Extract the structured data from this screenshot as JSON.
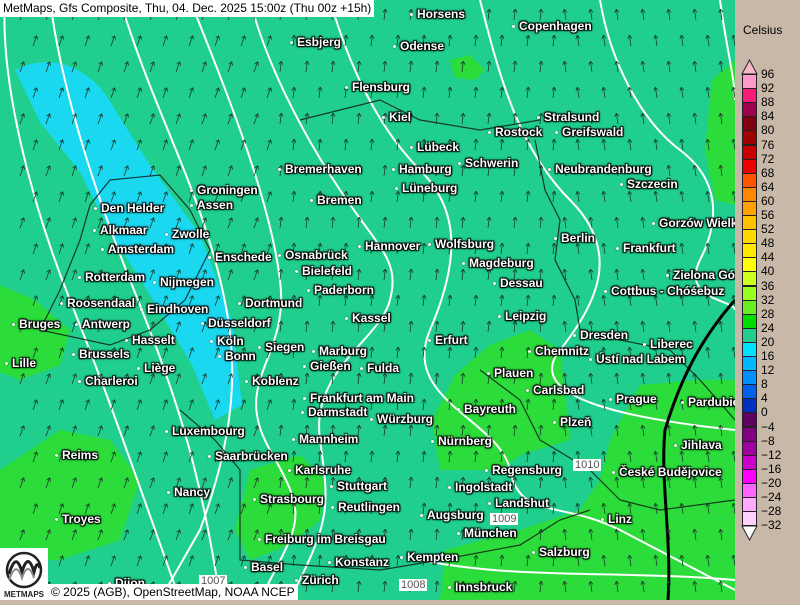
{
  "header": {
    "title": "MetMaps, Gfs Composite, Thu, 04. Dec. 2025 15:00z (Thu 00z +15h)"
  },
  "legend": {
    "unit": "Celsius",
    "labels": [
      "96",
      "92",
      "88",
      "84",
      "80",
      "76",
      "72",
      "68",
      "64",
      "60",
      "56",
      "52",
      "48",
      "44",
      "40",
      "36",
      "32",
      "28",
      "24",
      "20",
      "16",
      "12",
      "8",
      "4",
      "0",
      "−4",
      "−8",
      "−12",
      "−16",
      "−20",
      "−24",
      "−28",
      "−32"
    ],
    "colors": [
      "#ff99cc",
      "#ff1a7a",
      "#a00050",
      "#800010",
      "#a00000",
      "#c80000",
      "#ee0000",
      "#ff5500",
      "#ff8800",
      "#ffa000",
      "#ffc000",
      "#ffd800",
      "#ffe800",
      "#ffff00",
      "#ccff22",
      "#99ff22",
      "#66ee22",
      "#00dd00",
      "#20cf8e",
      "#00e0ff",
      "#00b8ff",
      "#0090ff",
      "#0060f0",
      "#0030c0",
      "#600060",
      "#800080",
      "#a000a0",
      "#cc00cc",
      "#ff00ff",
      "#ff66ff",
      "#ffaaff",
      "#ffd0ff"
    ],
    "top_arrow_color": "#f8b8c8",
    "bottom_arrow_color": "#ffffff"
  },
  "map": {
    "base_color": "#20cf8e",
    "cold_color": "#1ad8f0",
    "warm_color": "#2bdc3a",
    "isobar_labels": [
      "1010",
      "1009",
      "1008",
      "1007"
    ],
    "cities": [
      "Horsens",
      "Copenhagen",
      "Esbjerg",
      "Odense",
      "Flensburg",
      "Kiel",
      "Stralsund",
      "Rostock",
      "Greifswald",
      "Lübeck",
      "Schwerin",
      "Bremerhaven",
      "Hamburg",
      "Neubrandenburg",
      "Szczecin",
      "Lüneburg",
      "Groningen",
      "Bremen",
      "Den Helder",
      "Assen",
      "Gorzów Wielkopolski",
      "Alkmaar",
      "Zwolle",
      "Berlin",
      "Amsterdam",
      "Hannover",
      "Wolfsburg",
      "Frankfurt",
      "Enschede",
      "Osnabrück",
      "Magdeburg",
      "Bielefeld",
      "Zielona Góra",
      "Rotterdam",
      "Nijmegen",
      "Dessau",
      "Paderborn",
      "Cottbus - Chóśebuz",
      "Roosendaal",
      "Eindhoven",
      "Dortmund",
      "Kassel",
      "Leipzig",
      "Bruges",
      "Antwerp",
      "Düsseldorf",
      "Dresden",
      "Hasselt",
      "Köln",
      "Erfurt",
      "Brussels",
      "Siegen",
      "Marburg",
      "Bonn",
      "Chemnitz",
      "Ústí nad Labem",
      "Liberec",
      "Lille",
      "Liège",
      "Gießen",
      "Fulda",
      "Plauen",
      "Charleroi",
      "Koblenz",
      "Carlsbad",
      "Frankfurt am Main",
      "Prague",
      "Pardubice",
      "Bayreuth",
      "Darmstadt",
      "Würzburg",
      "Plzeň",
      "Luxembourg",
      "Mannheim",
      "Nürnberg",
      "Jihlava",
      "Reims",
      "Saarbrücken",
      "Regensburg",
      "Karlsruhe",
      "České Budějovice",
      "Stuttgart",
      "Ingolstadt",
      "Nancy",
      "Strasbourg",
      "Landshut",
      "Reutlingen",
      "Troyes",
      "Augsburg",
      "Linz",
      "München",
      "Freiburg im Breisgau",
      "Salzburg",
      "Kempten",
      "Konstanz",
      "Basel",
      "Zürich",
      "Innsbruck",
      "Dijon"
    ]
  },
  "footer": {
    "copyright": "© 2025 (AGB), OpenStreetMap, NOAA NCEP",
    "logo_text": "METMAPS"
  }
}
